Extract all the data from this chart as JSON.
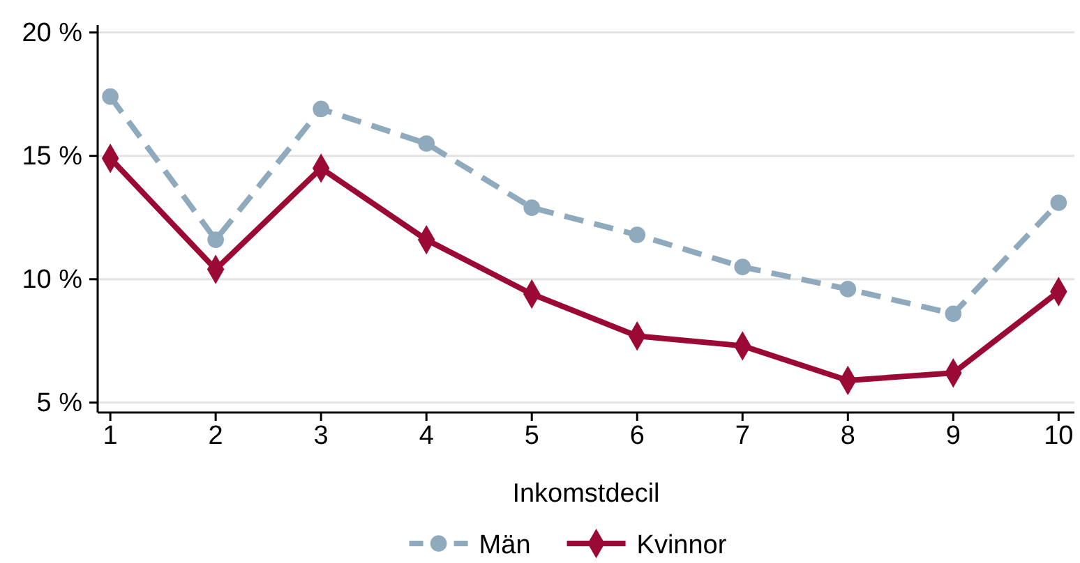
{
  "chart_data": {
    "type": "line",
    "xlabel": "Inkomstdecil",
    "x": [
      1,
      2,
      3,
      4,
      5,
      6,
      7,
      8,
      9,
      10
    ],
    "xlim": [
      0.88,
      10.15
    ],
    "xticks": [
      1,
      2,
      3,
      4,
      5,
      6,
      7,
      8,
      9,
      10
    ],
    "ylim": [
      4.6,
      20.3
    ],
    "yticks": [
      {
        "value": 5,
        "label": "5 %"
      },
      {
        "value": 10,
        "label": "10 %"
      },
      {
        "value": 15,
        "label": "15 %"
      },
      {
        "value": 20,
        "label": "20 %"
      }
    ],
    "grid": "y",
    "legend": "bottom",
    "series": [
      {
        "name": "Män",
        "color": "#8fa9bd",
        "marker": "circle",
        "line_style": "dashed",
        "values": [
          17.4,
          11.6,
          16.9,
          15.5,
          12.9,
          11.8,
          10.5,
          9.6,
          8.6,
          13.1
        ]
      },
      {
        "name": "Kvinnor",
        "color": "#9b0a35",
        "marker": "diamond",
        "line_style": "solid",
        "values": [
          14.9,
          10.4,
          14.5,
          11.6,
          9.4,
          7.7,
          7.3,
          5.9,
          6.2,
          9.5
        ]
      }
    ]
  }
}
